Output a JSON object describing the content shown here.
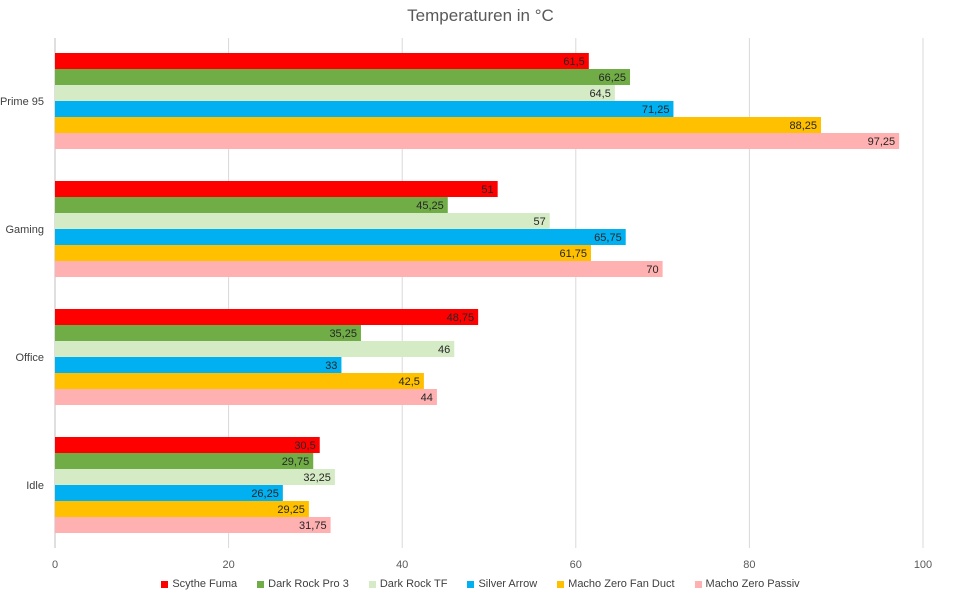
{
  "chart_data": {
    "type": "bar",
    "orientation": "horizontal",
    "title": "Temperaturen in °C",
    "xlabel": "",
    "ylabel": "",
    "xlim": [
      0,
      100
    ],
    "x_ticks": [
      "0",
      "20",
      "40",
      "60",
      "80",
      "100"
    ],
    "grid": true,
    "legend_position": "bottom",
    "categories": [
      "Prime 95",
      "Gaming",
      "Office",
      "Idle"
    ],
    "series": [
      {
        "name": "Scythe Fuma",
        "color": "#ff0000",
        "values": [
          61.5,
          51,
          48.75,
          30.5
        ],
        "labels": [
          "61,5",
          "51",
          "48,75",
          "30,5"
        ]
      },
      {
        "name": "Dark Rock Pro 3",
        "color": "#70ad47",
        "values": [
          66.25,
          45.25,
          35.25,
          29.75
        ],
        "labels": [
          "66,25",
          "45,25",
          "35,25",
          "29,75"
        ]
      },
      {
        "name": "Dark Rock TF",
        "color": "#d5ebc5",
        "values": [
          64.5,
          57,
          46,
          32.25
        ],
        "labels": [
          "64,5",
          "57",
          "46",
          "32,25"
        ]
      },
      {
        "name": "Silver Arrow",
        "color": "#00b0f0",
        "values": [
          71.25,
          65.75,
          33,
          26.25
        ],
        "labels": [
          "71,25",
          "65,75",
          "33",
          "26,25"
        ]
      },
      {
        "name": "Macho Zero Fan Duct",
        "color": "#ffc000",
        "values": [
          88.25,
          61.75,
          42.5,
          29.25
        ],
        "labels": [
          "88,25",
          "61,75",
          "42,5",
          "29,25"
        ]
      },
      {
        "name": "Macho Zero Passiv",
        "color": "#ffb0b0",
        "values": [
          97.25,
          70,
          44,
          31.75
        ],
        "labels": [
          "97,25",
          "70",
          "44",
          "31,75"
        ]
      }
    ]
  }
}
